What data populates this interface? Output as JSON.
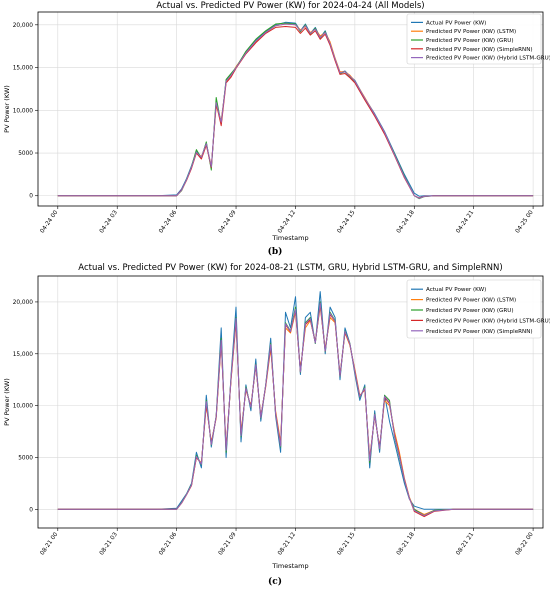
{
  "colors": {
    "actual": "#1f77b4",
    "lstm": "#ff7f0e",
    "gru": "#2ca02c",
    "simplernn": "#d62728",
    "hybrid": "#9467bd",
    "grid": "#d9d9d9"
  },
  "chart_data": [
    {
      "type": "line",
      "panel_caption": "(b)",
      "title": "Actual vs. Predicted PV Power (KW) for 2024-04-24 (All Models)",
      "xlabel": "Timestamp",
      "ylabel": "PV Power (KW)",
      "xlim": [
        -1,
        24.5
      ],
      "ylim": [
        -1200,
        21500
      ],
      "x_ticks": [
        0,
        3,
        6,
        9,
        12,
        15,
        18,
        21,
        24
      ],
      "x_tick_labels": [
        "04-24 00",
        "04-24 03",
        "04-24 06",
        "04-24 09",
        "04-24 12",
        "04-24 15",
        "04-24 18",
        "04-24 21",
        "04-25 00"
      ],
      "y_ticks": [
        0,
        5000,
        10000,
        15000,
        20000
      ],
      "y_tick_labels": [
        "0",
        "5000",
        "10,000",
        "15,000",
        "20,000"
      ],
      "grid": true,
      "legend_position": "top-right",
      "x": [
        0,
        1,
        2,
        3,
        4,
        5,
        6,
        6.25,
        6.5,
        6.75,
        7,
        7.25,
        7.5,
        7.75,
        8,
        8.25,
        8.5,
        8.75,
        9,
        9.5,
        10,
        10.5,
        11,
        11.5,
        12,
        12.25,
        12.5,
        12.75,
        13,
        13.25,
        13.5,
        13.75,
        14,
        14.25,
        14.5,
        14.75,
        15,
        15.5,
        16,
        16.5,
        17,
        17.5,
        18,
        18.25,
        18.5,
        19,
        20,
        21,
        22,
        23,
        24
      ],
      "series": [
        {
          "name": "Actual PV Power (KW)",
          "color_key": "actual",
          "values": [
            0,
            0,
            0,
            0,
            0,
            0,
            100,
            800,
            2000,
            3500,
            5200,
            4500,
            6200,
            3200,
            11000,
            8500,
            13500,
            14200,
            15000,
            16800,
            18200,
            19200,
            20000,
            20300,
            20200,
            19300,
            20100,
            19000,
            19700,
            18500,
            19300,
            17800,
            16000,
            14400,
            14600,
            14000,
            13500,
            11400,
            9600,
            7500,
            5000,
            2500,
            300,
            -50,
            0,
            0,
            0,
            0,
            0,
            0,
            0
          ]
        },
        {
          "name": "Predicted PV Power (KW) (LSTM)",
          "color_key": "lstm",
          "values": [
            0,
            0,
            0,
            0,
            0,
            0,
            0,
            600,
            1800,
            3300,
            5000,
            4600,
            6000,
            3500,
            10500,
            8800,
            13300,
            14100,
            15100,
            16700,
            18000,
            19100,
            19900,
            20100,
            20000,
            19400,
            19800,
            19100,
            19500,
            18700,
            19100,
            18000,
            16100,
            14500,
            14500,
            14100,
            13400,
            11500,
            9500,
            7400,
            4800,
            2200,
            0,
            -300,
            -100,
            0,
            0,
            0,
            0,
            0,
            0
          ]
        },
        {
          "name": "Predicted PV Power (KW) (GRU)",
          "color_key": "gru",
          "values": [
            0,
            0,
            0,
            0,
            0,
            0,
            0,
            600,
            1900,
            3400,
            5400,
            4400,
            6300,
            3000,
            11500,
            8400,
            13600,
            14300,
            15000,
            16900,
            18300,
            19300,
            20100,
            20200,
            20100,
            19200,
            20000,
            18900,
            19600,
            18400,
            19200,
            17700,
            15900,
            14300,
            14500,
            13900,
            13300,
            11300,
            9400,
            7300,
            4900,
            2300,
            0,
            -350,
            -100,
            0,
            0,
            0,
            0,
            0,
            0
          ]
        },
        {
          "name": "Predicted PV Power (KW) (SimpleRNN)",
          "color_key": "simplernn",
          "values": [
            0,
            0,
            0,
            0,
            0,
            0,
            0,
            700,
            1800,
            3200,
            5000,
            4300,
            5900,
            3300,
            10800,
            8200,
            13200,
            13900,
            14900,
            16600,
            17900,
            19000,
            19700,
            19800,
            19700,
            19000,
            19600,
            18800,
            19300,
            18300,
            18900,
            17600,
            15800,
            14200,
            14300,
            13800,
            13200,
            11200,
            9300,
            7200,
            4700,
            2100,
            0,
            -250,
            -50,
            0,
            0,
            0,
            0,
            0,
            0
          ]
        },
        {
          "name": "Predicted PV Power (KW) (Hybrid LSTM-GRU)",
          "color_key": "hybrid",
          "values": [
            0,
            0,
            0,
            0,
            0,
            0,
            0,
            650,
            1850,
            3350,
            5100,
            4500,
            6100,
            3400,
            10900,
            8600,
            13400,
            14100,
            15000,
            16700,
            18100,
            19100,
            19900,
            20100,
            20000,
            19300,
            19900,
            19000,
            19500,
            18500,
            19100,
            17800,
            16000,
            14400,
            14500,
            14000,
            13400,
            11400,
            9500,
            7400,
            4800,
            2200,
            0,
            -300,
            -80,
            0,
            0,
            0,
            0,
            0,
            0
          ]
        }
      ]
    },
    {
      "type": "line",
      "panel_caption": "(c)",
      "title": "Actual vs. Predicted PV Power (KW) for 2024-08-21 (LSTM, GRU, Hybrid LSTM-GRU, and SimpleRNN)",
      "xlabel": "Timestamp",
      "ylabel": "PV Power (KW)",
      "xlim": [
        -1,
        24.5
      ],
      "ylim": [
        -1800,
        22500
      ],
      "x_ticks": [
        0,
        3,
        6,
        9,
        12,
        15,
        18,
        21,
        24
      ],
      "x_tick_labels": [
        "08-21 00",
        "08-21 03",
        "08-21 06",
        "08-21 09",
        "08-21 12",
        "08-21 15",
        "08-21 18",
        "08-21 21",
        "08-22 00"
      ],
      "y_ticks": [
        0,
        5000,
        10000,
        15000,
        20000
      ],
      "y_tick_labels": [
        "0",
        "5000",
        "10,000",
        "15,000",
        "20,000"
      ],
      "grid": true,
      "legend_position": "top-right",
      "x": [
        0,
        1,
        2,
        3,
        4,
        5,
        6,
        6.25,
        6.5,
        6.75,
        7,
        7.25,
        7.5,
        7.75,
        8,
        8.25,
        8.5,
        8.75,
        9,
        9.25,
        9.5,
        9.75,
        10,
        10.25,
        10.5,
        10.75,
        11,
        11.25,
        11.5,
        11.75,
        12,
        12.25,
        12.5,
        12.75,
        13,
        13.25,
        13.5,
        13.75,
        14,
        14.25,
        14.5,
        14.75,
        15,
        15.25,
        15.5,
        15.75,
        16,
        16.25,
        16.5,
        16.75,
        17,
        17.25,
        17.5,
        17.75,
        18,
        18.5,
        19,
        20,
        21,
        22,
        23,
        24
      ],
      "series": [
        {
          "name": "Actual PV Power (KW)",
          "color_key": "actual",
          "values": [
            0,
            0,
            0,
            0,
            0,
            0,
            100,
            800,
            1500,
            2500,
            5500,
            4000,
            11000,
            6000,
            9000,
            17500,
            5000,
            13000,
            19500,
            6500,
            12000,
            9500,
            14500,
            8500,
            12000,
            16500,
            9000,
            5500,
            19000,
            17500,
            20500,
            13000,
            18500,
            19000,
            16000,
            21000,
            15000,
            19500,
            18500,
            12500,
            17500,
            16000,
            13000,
            10500,
            12000,
            4000,
            9500,
            5500,
            11000,
            8500,
            6500,
            4500,
            2500,
            1000,
            300,
            0,
            0,
            0,
            0,
            0,
            0,
            0
          ]
        },
        {
          "name": "Predicted PV Power (KW) (LSTM)",
          "color_key": "lstm",
          "values": [
            0,
            0,
            0,
            0,
            0,
            0,
            0,
            600,
            1400,
            2300,
            5000,
            4500,
            10000,
            6500,
            8800,
            16000,
            6000,
            12500,
            18000,
            7500,
            11500,
            10000,
            13800,
            9000,
            11800,
            15500,
            9500,
            6500,
            17500,
            17000,
            19000,
            13500,
            17500,
            18200,
            16200,
            19500,
            15500,
            18500,
            18000,
            13000,
            17000,
            15800,
            13500,
            11000,
            11500,
            5000,
            9000,
            6000,
            10500,
            10000,
            7500,
            5500,
            3000,
            1200,
            0,
            -500,
            -100,
            0,
            0,
            0,
            0,
            0
          ]
        },
        {
          "name": "Predicted PV Power (KW) (GRU)",
          "color_key": "gru",
          "values": [
            0,
            0,
            0,
            0,
            0,
            0,
            0,
            650,
            1450,
            2400,
            5200,
            4300,
            10500,
            6200,
            9000,
            16500,
            5500,
            12800,
            18500,
            7000,
            11800,
            9800,
            14000,
            8800,
            12000,
            16000,
            9200,
            6000,
            18000,
            17200,
            19500,
            13200,
            18000,
            18500,
            16000,
            20000,
            15200,
            19000,
            18200,
            12800,
            17200,
            16000,
            13200,
            10800,
            11800,
            4500,
            9200,
            5800,
            11000,
            10500,
            7000,
            5000,
            2800,
            1100,
            0,
            -600,
            -100,
            0,
            0,
            0,
            0,
            0
          ]
        },
        {
          "name": "Predicted PV Power (KW) (Hybrid LSTM-GRU)",
          "color_key": "simplernn",
          "values": [
            0,
            0,
            0,
            0,
            0,
            0,
            0,
            600,
            1400,
            2300,
            5000,
            4400,
            10200,
            6300,
            8900,
            16200,
            5800,
            12600,
            18200,
            7200,
            11600,
            9900,
            13900,
            8900,
            11900,
            15800,
            9300,
            6200,
            17800,
            17100,
            19200,
            13300,
            17800,
            18300,
            16100,
            19800,
            15300,
            18800,
            18100,
            12900,
            17100,
            15900,
            13300,
            10900,
            11600,
            4800,
            9100,
            5900,
            10800,
            10200,
            7200,
            5200,
            2900,
            1100,
            -200,
            -700,
            -200,
            0,
            0,
            0,
            0,
            0
          ]
        },
        {
          "name": "Predicted PV Power (KW) (SimpleRNN)",
          "color_key": "hybrid",
          "values": [
            0,
            0,
            0,
            0,
            0,
            0,
            0,
            620,
            1420,
            2350,
            5100,
            4350,
            10400,
            6250,
            8950,
            16300,
            5700,
            12700,
            18400,
            7100,
            11700,
            9850,
            13950,
            8850,
            11950,
            15900,
            9250,
            6100,
            17900,
            17150,
            19300,
            13250,
            17900,
            18400,
            16050,
            19900,
            15250,
            18900,
            18150,
            12850,
            17150,
            15950,
            13250,
            10850,
            11700,
            4700,
            9150,
            5850,
            10900,
            10300,
            7100,
            5100,
            2850,
            1100,
            -100,
            -600,
            -150,
            0,
            0,
            0,
            0,
            0
          ]
        }
      ]
    }
  ]
}
